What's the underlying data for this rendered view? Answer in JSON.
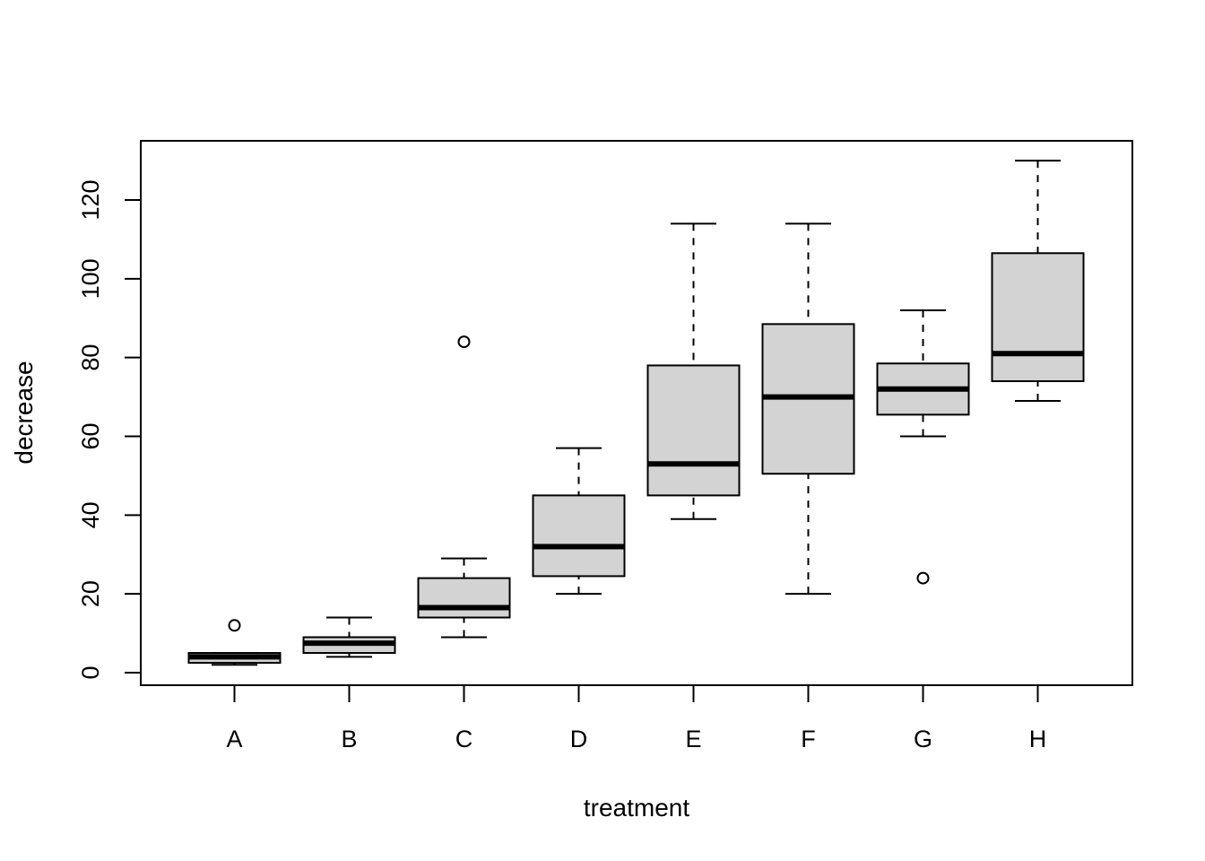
{
  "chart_data": {
    "type": "boxplot",
    "xlabel": "treatment",
    "ylabel": "decrease",
    "ylim": [
      -3,
      135
    ],
    "yticks": [
      0,
      20,
      40,
      60,
      80,
      100,
      120
    ],
    "yticks_labels": [
      "0",
      "20",
      "40",
      "60",
      "80",
      "100",
      "120"
    ],
    "categories": [
      "A",
      "B",
      "C",
      "D",
      "E",
      "F",
      "G",
      "H"
    ],
    "box_fill": "#d3d3d3",
    "line_color": "#000000",
    "boxes": [
      {
        "category": "A",
        "whisker_low": 2,
        "q1": 2.5,
        "median": 4,
        "q3": 5,
        "whisker_high": 5,
        "outliers": [
          12
        ]
      },
      {
        "category": "B",
        "whisker_low": 4,
        "q1": 5,
        "median": 7.5,
        "q3": 9,
        "whisker_high": 14,
        "outliers": []
      },
      {
        "category": "C",
        "whisker_low": 9,
        "q1": 14,
        "median": 16.5,
        "q3": 24,
        "whisker_high": 29,
        "outliers": [
          84
        ]
      },
      {
        "category": "D",
        "whisker_low": 20,
        "q1": 24.5,
        "median": 32,
        "q3": 45,
        "whisker_high": 57,
        "outliers": []
      },
      {
        "category": "E",
        "whisker_low": 39,
        "q1": 45,
        "median": 53,
        "q3": 78,
        "whisker_high": 114,
        "outliers": []
      },
      {
        "category": "F",
        "whisker_low": 20,
        "q1": 50.5,
        "median": 70,
        "q3": 88.5,
        "whisker_high": 114,
        "outliers": []
      },
      {
        "category": "G",
        "whisker_low": 60,
        "q1": 65.5,
        "median": 72,
        "q3": 78.5,
        "whisker_high": 92,
        "outliers": [
          24
        ]
      },
      {
        "category": "H",
        "whisker_low": 69,
        "q1": 74,
        "median": 81,
        "q3": 106.5,
        "whisker_high": 130,
        "outliers": []
      }
    ]
  }
}
